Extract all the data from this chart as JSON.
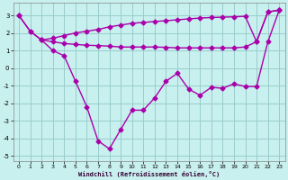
{
  "xlabel": "Windchill (Refroidissement éolien,°C)",
  "background_color": "#c8f0ee",
  "line_color": "#aa00aa",
  "grid_color": "#99cccc",
  "xlim": [
    -0.5,
    23.5
  ],
  "ylim": [
    -5.3,
    3.7
  ],
  "yticks": [
    -5,
    -4,
    -3,
    -2,
    -1,
    0,
    1,
    2,
    3
  ],
  "xticks": [
    0,
    1,
    2,
    3,
    4,
    5,
    6,
    7,
    8,
    9,
    10,
    11,
    12,
    13,
    14,
    15,
    16,
    17,
    18,
    19,
    20,
    21,
    22,
    23
  ],
  "line1_x": [
    0,
    1,
    2,
    3,
    4,
    5,
    6,
    7,
    8,
    9,
    10,
    11,
    12,
    13,
    14,
    15,
    16,
    17,
    18,
    19,
    20,
    21,
    22,
    23
  ],
  "line1_y": [
    3.0,
    2.1,
    1.6,
    1.7,
    1.85,
    2.0,
    2.1,
    2.2,
    2.35,
    2.45,
    2.55,
    2.6,
    2.65,
    2.7,
    2.75,
    2.8,
    2.85,
    2.88,
    2.9,
    2.92,
    2.95,
    1.5,
    3.2,
    3.3
  ],
  "line2_x": [
    0,
    1,
    2,
    3,
    4,
    5,
    6,
    7,
    8,
    9,
    10,
    11,
    12,
    13,
    14,
    15,
    16,
    17,
    18,
    19,
    20,
    21,
    22,
    23
  ],
  "line2_y": [
    3.0,
    2.1,
    1.6,
    1.5,
    1.4,
    1.35,
    1.3,
    1.28,
    1.25,
    1.2,
    1.2,
    1.2,
    1.2,
    1.18,
    1.15,
    1.15,
    1.15,
    1.15,
    1.15,
    1.15,
    1.2,
    1.5,
    3.2,
    3.3
  ],
  "line3_x": [
    2,
    3,
    4,
    5,
    6,
    7,
    8,
    9,
    10,
    11,
    12,
    13,
    14,
    15,
    16,
    17,
    18,
    19,
    20,
    21,
    22,
    23
  ],
  "line3_y": [
    1.6,
    1.0,
    0.7,
    -0.75,
    -2.2,
    -4.15,
    -4.6,
    -3.5,
    -2.4,
    -2.4,
    -1.7,
    -0.75,
    -0.3,
    -1.2,
    -1.55,
    -1.1,
    -1.15,
    -0.9,
    -1.05,
    -1.05,
    1.5,
    3.3
  ],
  "marker": "D",
  "markersize": 2.5,
  "linewidth": 1.0
}
